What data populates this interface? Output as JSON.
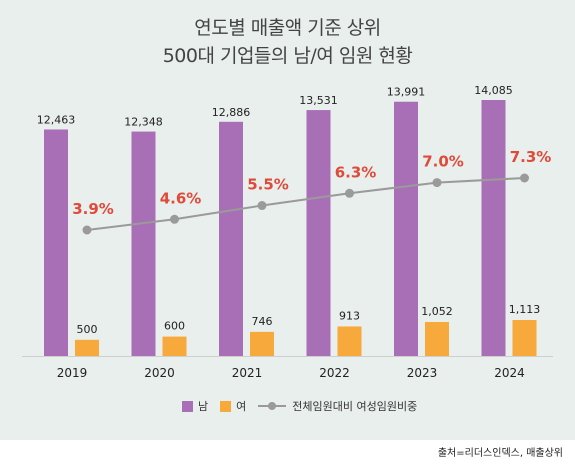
{
  "chart_data": {
    "type": "bar",
    "title_lines": [
      "연도별 매출액 기준 상위",
      "500대 기업들의 남/여 임원 현황"
    ],
    "categories": [
      "2019",
      "2020",
      "2021",
      "2022",
      "2023",
      "2024"
    ],
    "series": [
      {
        "name": "남",
        "color": "#a86fb6",
        "values": [
          12463,
          12348,
          12886,
          13531,
          13991,
          14085
        ],
        "labels": [
          "12,463",
          "12,348",
          "12,886",
          "13,531",
          "13,991",
          "14,085"
        ]
      },
      {
        "name": "여",
        "color": "#f7a93b",
        "values": [
          500,
          600,
          746,
          913,
          1052,
          1113
        ],
        "labels": [
          "500",
          "600",
          "746",
          "913",
          "1,052",
          "1,113"
        ]
      }
    ],
    "line_series": {
      "name": "전체임원대비 여성임원비중",
      "color": "#9a9a9a",
      "label_color": "#e04a3a",
      "values": [
        3.9,
        4.6,
        5.5,
        6.3,
        7.0,
        7.3
      ],
      "labels": [
        "3.9%",
        "4.6%",
        "5.5%",
        "6.3%",
        "7.0%",
        "7.3%"
      ]
    },
    "grid": false,
    "legend_position": "bottom"
  },
  "source": "출처=리더스인덱스, 매출상위"
}
